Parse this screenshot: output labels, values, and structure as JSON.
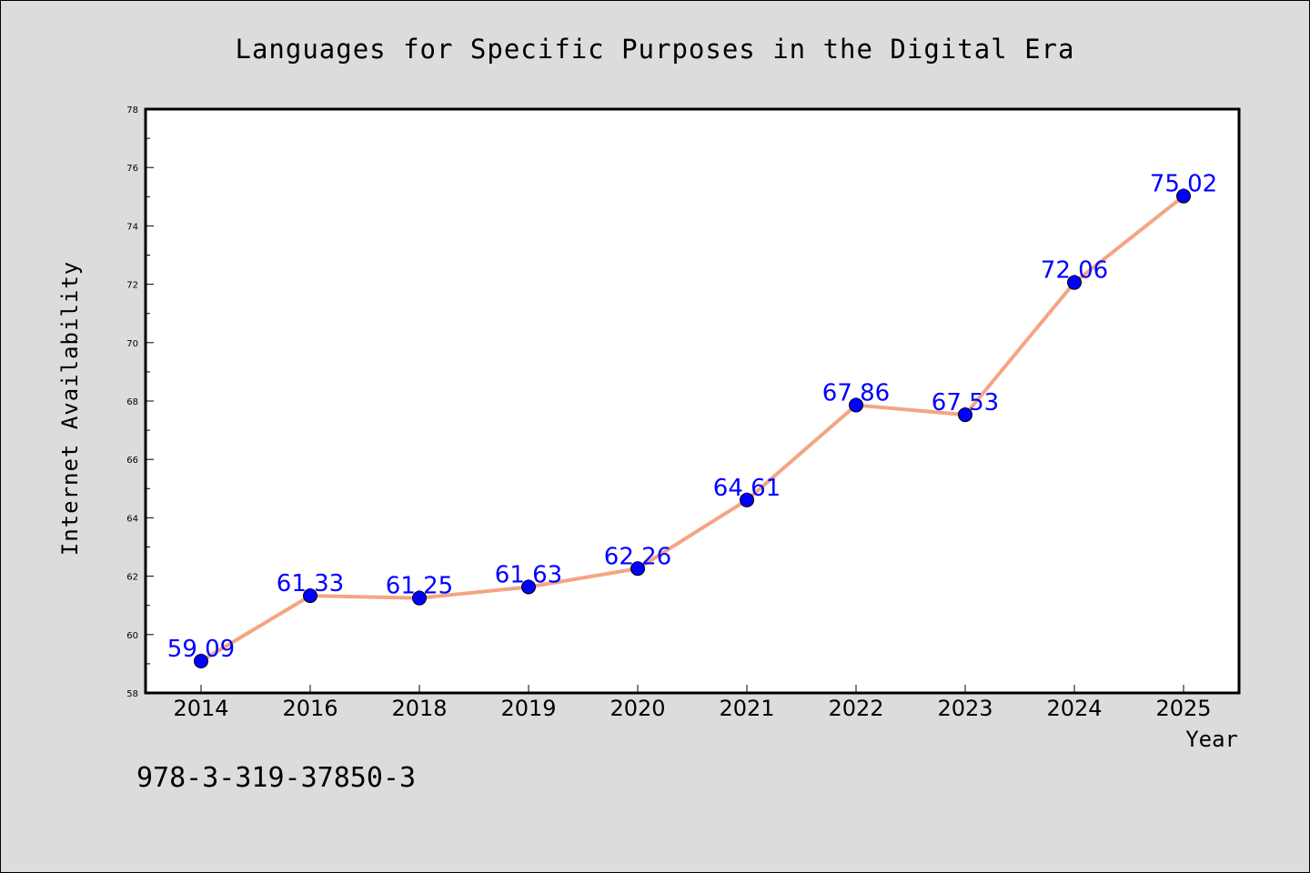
{
  "chart_data": {
    "type": "line",
    "title": "Languages for Specific Purposes in the Digital Era",
    "xlabel": "Year",
    "ylabel": "Internet Availability",
    "categories": [
      "2014",
      "2016",
      "2018",
      "2019",
      "2020",
      "2021",
      "2022",
      "2023",
      "2024",
      "2025"
    ],
    "values": [
      59.09,
      61.33,
      61.25,
      61.63,
      62.26,
      64.61,
      67.86,
      67.53,
      72.06,
      75.02
    ],
    "data_labels": [
      "59.09",
      "61.33",
      "61.25",
      "61.63",
      "62.26",
      "64.61",
      "67.86",
      "67.53",
      "72.06",
      "75.02"
    ],
    "ylim": [
      58,
      78
    ],
    "yticks": [
      58,
      60,
      62,
      64,
      66,
      68,
      70,
      72,
      74,
      76,
      78
    ],
    "grid": false,
    "line_color": "#f4a582",
    "marker_color": "#0000ff",
    "label_color": "#0000ff",
    "background_color": "#dcdcdc",
    "plot_background_color": "#ffffff"
  },
  "footer": {
    "isbn": "978-3-319-37850-3"
  }
}
